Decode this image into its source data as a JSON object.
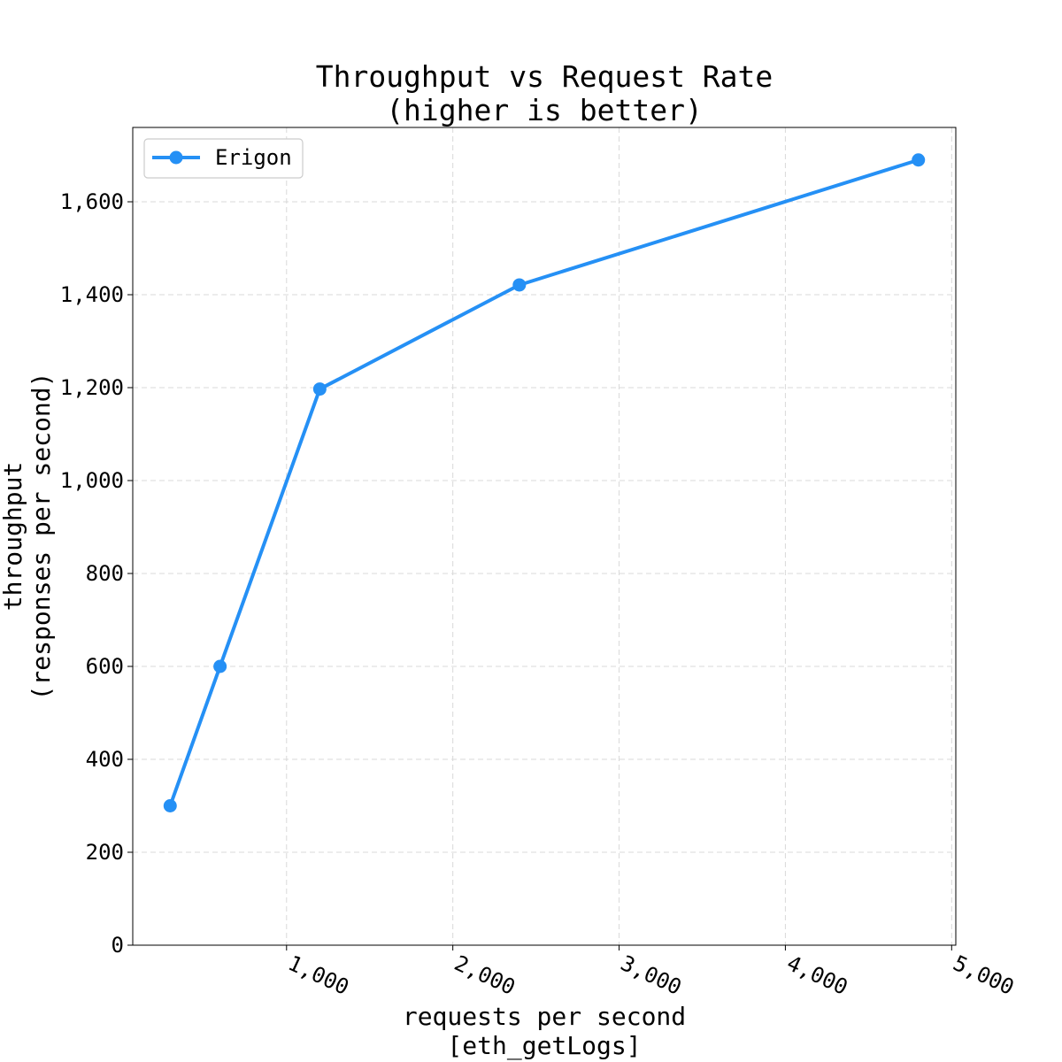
{
  "chart_data": {
    "type": "line",
    "title": "Throughput vs Request Rate",
    "subtitle": "(higher is better)",
    "xlabel": "requests per second",
    "xlabel_sub": "[eth_getLogs]",
    "ylabel": "throughput",
    "ylabel_sub": "(responses per second)",
    "xlim": [
      75,
      5025
    ],
    "ylim": [
      0,
      1760
    ],
    "x_ticks": [
      1000,
      2000,
      3000,
      4000,
      5000
    ],
    "x_tick_labels": [
      "1,000",
      "2,000",
      "3,000",
      "4,000",
      "5,000"
    ],
    "y_ticks": [
      0,
      200,
      400,
      600,
      800,
      1000,
      1200,
      1400,
      1600
    ],
    "y_tick_labels": [
      "0",
      "200",
      "400",
      "600",
      "800",
      "1,000",
      "1,200",
      "1,400",
      "1,600"
    ],
    "grid": true,
    "legend_position": "top-left",
    "series": [
      {
        "name": "Erigon",
        "color": "#2590f5",
        "x": [
          300,
          600,
          1200,
          2400,
          4800
        ],
        "y": [
          300,
          600,
          1197,
          1421,
          1690
        ]
      }
    ]
  }
}
